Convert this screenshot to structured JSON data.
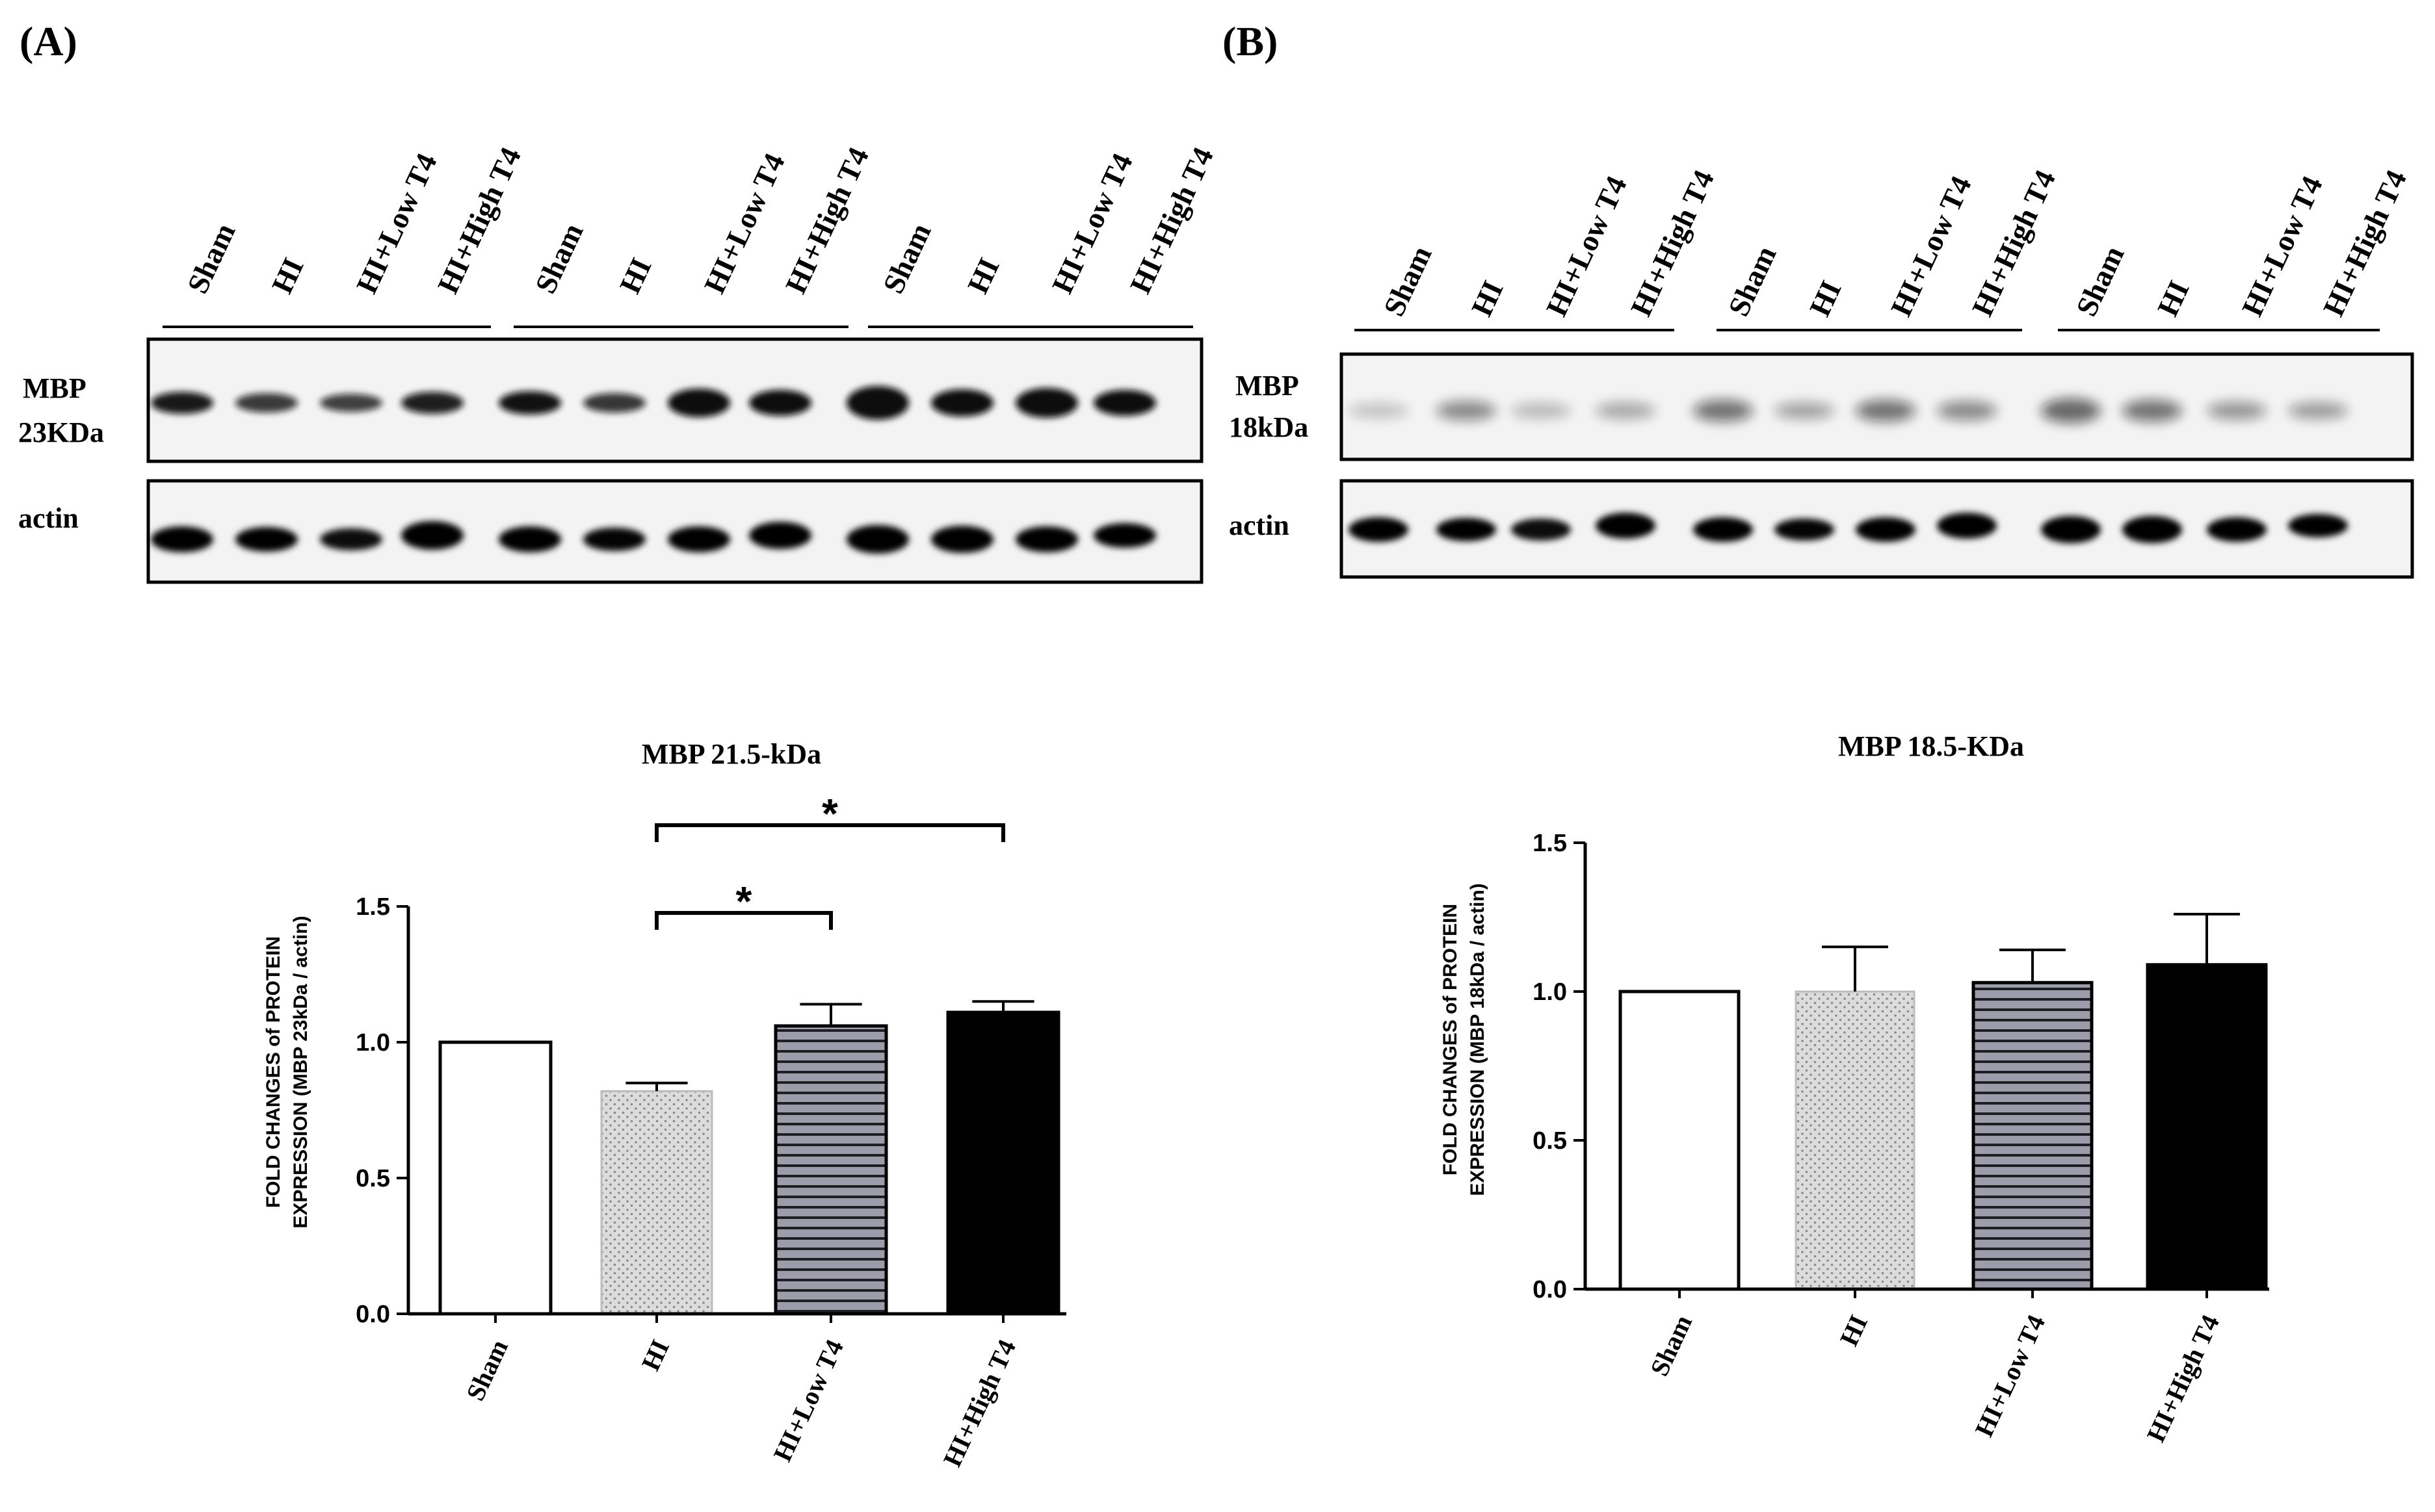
{
  "panels": [
    {
      "label": "(A)",
      "blot": {
        "lane_labels": [
          "Sham",
          "HI",
          "HI+Low T4",
          "HI+High T4",
          "Sham",
          "HI",
          "HI+Low T4",
          "HI+High T4",
          "Sham",
          "HI",
          "HI+Low T4",
          "HI+High T4"
        ],
        "target_label": [
          "MBP",
          "23KDa"
        ],
        "loading_label": "actin"
      },
      "chart_data": {
        "type": "bar",
        "title": "MBP 21.5-kDa",
        "categories": [
          "Sham",
          "HI",
          "HI+Low T4",
          "HI+High T4"
        ],
        "values": [
          1.0,
          0.82,
          1.06,
          1.11
        ],
        "errors": [
          0.0,
          0.03,
          0.08,
          0.04
        ],
        "ylabel": [
          "FOLD CHANGES of PROTEIN",
          "EXPRESSION (MBP 23kDa / actin)"
        ],
        "ylim": [
          0,
          1.5
        ],
        "yticks": [
          "0.0",
          "0.5",
          "1.0",
          "1.5"
        ],
        "fills": [
          "open",
          "dotted-gray",
          "striped-gray",
          "solid-black"
        ],
        "significance": [
          {
            "from": "HI",
            "to": "HI+Low T4",
            "mark": "*"
          },
          {
            "from": "HI",
            "to": "HI+High T4",
            "mark": "*"
          }
        ]
      }
    },
    {
      "label": "(B)",
      "blot": {
        "lane_labels": [
          "Sham",
          "HI",
          "HI+Low T4",
          "HI+High T4",
          "Sham",
          "HI",
          "HI+Low T4",
          "HI+High T4",
          "Sham",
          "HI",
          "HI+Low T4",
          "HI+High T4"
        ],
        "target_label": [
          "MBP",
          "18kDa"
        ],
        "loading_label": "actin"
      },
      "chart_data": {
        "type": "bar",
        "title": "MBP 18.5-KDa",
        "categories": [
          "Sham",
          "HI",
          "HI+Low T4",
          "HI+High T4"
        ],
        "values": [
          1.0,
          1.0,
          1.03,
          1.09
        ],
        "errors": [
          0.0,
          0.15,
          0.11,
          0.17
        ],
        "ylabel": [
          "FOLD CHANGES of PROTEIN",
          "EXPRESSION (MBP 18kDa / actin)"
        ],
        "ylim": [
          0,
          1.5
        ],
        "yticks": [
          "0.0",
          "0.5",
          "1.0",
          "1.5"
        ],
        "fills": [
          "open",
          "dotted-gray",
          "striped-gray",
          "solid-black"
        ],
        "significance": []
      }
    }
  ],
  "colors": {
    "ink": "#000000",
    "dotted_fill": "#d9d9d9",
    "striped_fill": "#9a9aa8",
    "blot_background": "#f2f2f2"
  }
}
